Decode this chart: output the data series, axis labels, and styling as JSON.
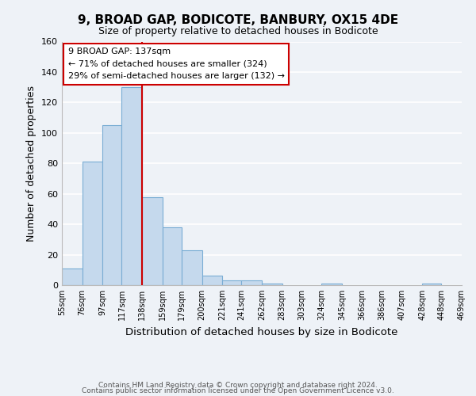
{
  "title": "9, BROAD GAP, BODICOTE, BANBURY, OX15 4DE",
  "subtitle": "Size of property relative to detached houses in Bodicote",
  "xlabel": "Distribution of detached houses by size in Bodicote",
  "ylabel": "Number of detached properties",
  "bar_edges": [
    55,
    76,
    97,
    117,
    138,
    159,
    179,
    200,
    221,
    241,
    262,
    283,
    303,
    324,
    345,
    366,
    386,
    407,
    428,
    448,
    469
  ],
  "bar_heights": [
    11,
    81,
    105,
    130,
    58,
    38,
    23,
    6,
    3,
    3,
    1,
    0,
    0,
    1,
    0,
    0,
    0,
    0,
    1,
    0
  ],
  "bar_color": "#c5d9ed",
  "bar_edgecolor": "#7aadd4",
  "vline_x": 138,
  "vline_color": "#cc0000",
  "annotation_text": "9 BROAD GAP: 137sqm\n← 71% of detached houses are smaller (324)\n29% of semi-detached houses are larger (132) →",
  "ylim": [
    0,
    160
  ],
  "yticks": [
    0,
    20,
    40,
    60,
    80,
    100,
    120,
    140,
    160
  ],
  "bg_color": "#eef2f7",
  "grid_color": "#ffffff",
  "footer_line1": "Contains HM Land Registry data © Crown copyright and database right 2024.",
  "footer_line2": "Contains public sector information licensed under the Open Government Licence v3.0.",
  "tick_labels": [
    "55sqm",
    "76sqm",
    "97sqm",
    "117sqm",
    "138sqm",
    "159sqm",
    "179sqm",
    "200sqm",
    "221sqm",
    "241sqm",
    "262sqm",
    "283sqm",
    "303sqm",
    "324sqm",
    "345sqm",
    "366sqm",
    "386sqm",
    "407sqm",
    "428sqm",
    "448sqm",
    "469sqm"
  ]
}
